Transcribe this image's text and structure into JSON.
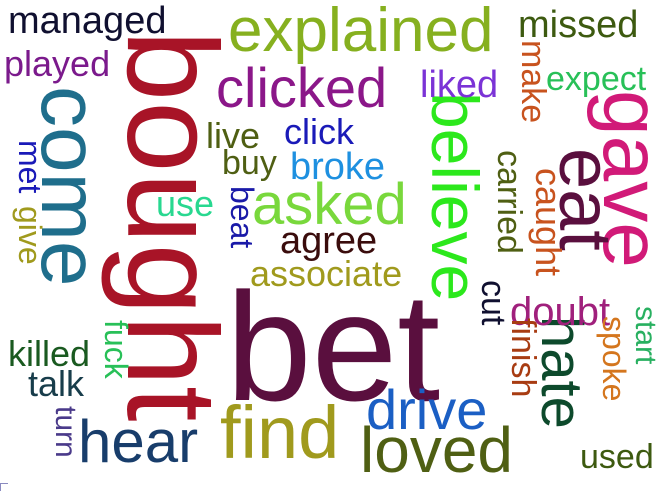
{
  "words": [
    {
      "text": "bet",
      "color": "#5a0f3e"
    },
    {
      "text": "bought",
      "color": "#a81427"
    },
    {
      "text": "come",
      "color": "#1f6e8c"
    },
    {
      "text": "explained",
      "color": "#86b01f"
    },
    {
      "text": "gave",
      "color": "#d11a78"
    },
    {
      "text": "believe",
      "color": "#2ce81c"
    },
    {
      "text": "eat",
      "color": "#5a0f3e"
    },
    {
      "text": "find",
      "color": "#a09a1d"
    },
    {
      "text": "loved",
      "color": "#4f5f13"
    },
    {
      "text": "hear",
      "color": "#183d6b"
    },
    {
      "text": "drive",
      "color": "#1b5fc4"
    },
    {
      "text": "hate",
      "color": "#0d4a2c"
    },
    {
      "text": "asked",
      "color": "#79d83c"
    },
    {
      "text": "clicked",
      "color": "#8b1789"
    },
    {
      "text": "managed",
      "color": "#101030"
    },
    {
      "text": "played",
      "color": "#7b1a8c"
    },
    {
      "text": "missed",
      "color": "#3d5a10"
    },
    {
      "text": "expect",
      "color": "#c8531e"
    },
    {
      "text": "make",
      "color": "#28c058"
    },
    {
      "text": "liked",
      "color": "#7b33d6"
    },
    {
      "text": "live",
      "color": "#4f5f13"
    },
    {
      "text": "click",
      "color": "#1a1ab8"
    },
    {
      "text": "buy",
      "color": "#4f5f13"
    },
    {
      "text": "broke",
      "color": "#1e90e0"
    },
    {
      "text": "use",
      "color": "#28d890"
    },
    {
      "text": "beat",
      "color": "#1a1aa8"
    },
    {
      "text": "agree",
      "color": "#3a0c0c"
    },
    {
      "text": "associate",
      "color": "#a09a1d"
    },
    {
      "text": "carried",
      "color": "#4f5f13"
    },
    {
      "text": "caught",
      "color": "#c8531e"
    },
    {
      "text": "cut",
      "color": "#101030"
    },
    {
      "text": "doubt",
      "color": "#a0207c"
    },
    {
      "text": "finish",
      "color": "#a83c12"
    },
    {
      "text": "start",
      "color": "#28b060"
    },
    {
      "text": "spoke",
      "color": "#d4761e"
    },
    {
      "text": "used",
      "color": "#3d5a10"
    },
    {
      "text": "met",
      "color": "#1a1ab8"
    },
    {
      "text": "give",
      "color": "#a09a1d"
    },
    {
      "text": "killed",
      "color": "#1a5a20"
    },
    {
      "text": "fuck",
      "color": "#28c058"
    },
    {
      "text": "talk",
      "color": "#183d4b"
    },
    {
      "text": "turn",
      "color": "#4a3a8a"
    }
  ]
}
